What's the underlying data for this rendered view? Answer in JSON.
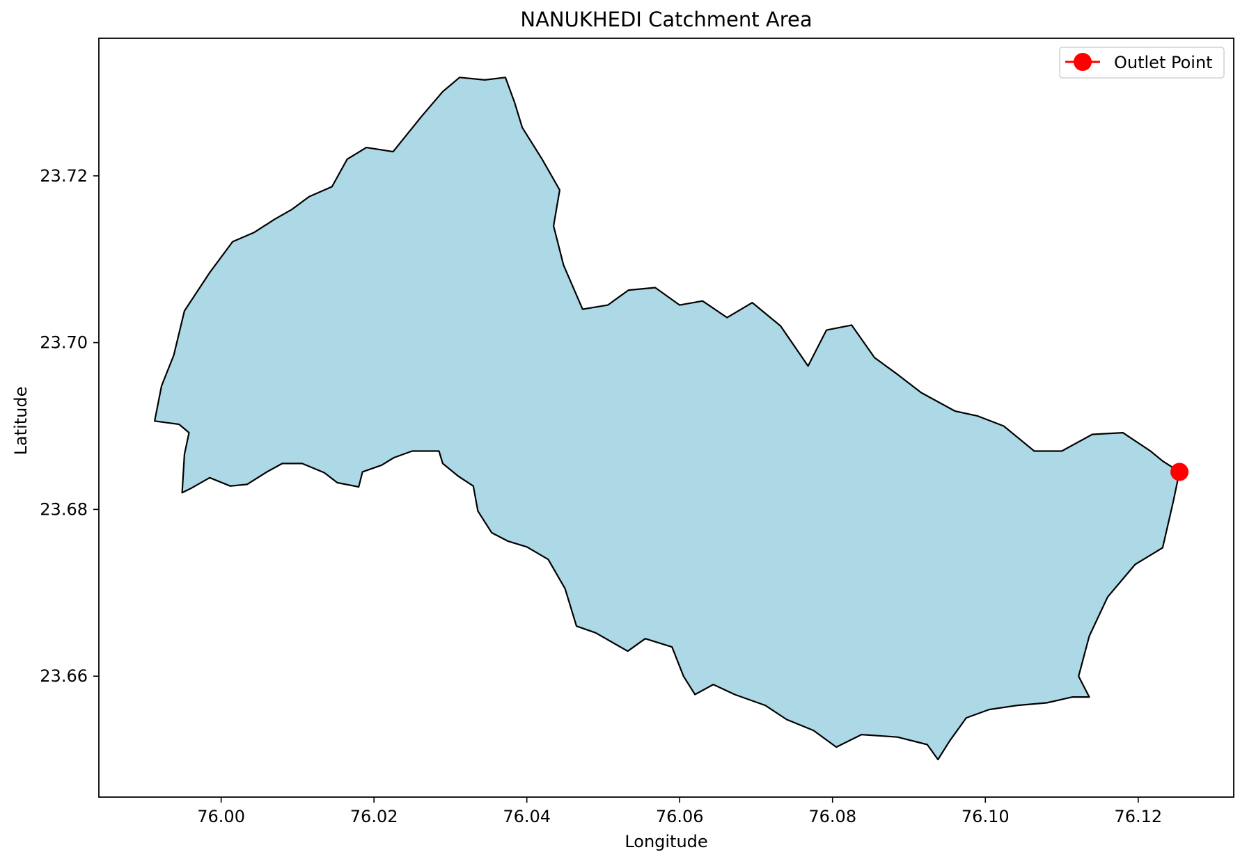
{
  "chart_data": {
    "type": "map",
    "title": "NANUKHEDI Catchment Area",
    "xlabel": "Longitude",
    "ylabel": "Latitude",
    "xlim": [
      75.984,
      76.1325
    ],
    "ylim": [
      23.6455,
      23.7365
    ],
    "x_ticks": [
      "76.00",
      "76.02",
      "76.04",
      "76.06",
      "76.08",
      "76.10",
      "76.12"
    ],
    "y_ticks": [
      "23.66",
      "23.68",
      "23.70",
      "23.72"
    ],
    "grid": false,
    "legend": {
      "position": "top-right",
      "entries": [
        "Outlet Point"
      ]
    },
    "catchment": {
      "fill": "#add8e6",
      "edge": "#000000",
      "boundary": [
        [
          75.9913,
          23.6906
        ],
        [
          75.9922,
          23.6948
        ],
        [
          75.9938,
          23.6985
        ],
        [
          75.9952,
          23.7038
        ],
        [
          75.9985,
          23.7084
        ],
        [
          76.0015,
          23.7121
        ],
        [
          76.0043,
          23.7132
        ],
        [
          76.007,
          23.7148
        ],
        [
          76.0093,
          23.716
        ],
        [
          76.0115,
          23.7175
        ],
        [
          76.0145,
          23.7187
        ],
        [
          76.0165,
          23.722
        ],
        [
          76.019,
          23.7234
        ],
        [
          76.0225,
          23.7229
        ],
        [
          76.0262,
          23.7271
        ],
        [
          76.029,
          23.7301
        ],
        [
          76.0312,
          23.7318
        ],
        [
          76.0345,
          23.7315
        ],
        [
          76.0372,
          23.7318
        ],
        [
          76.0384,
          23.7288
        ],
        [
          76.0394,
          23.7258
        ],
        [
          76.042,
          23.722
        ],
        [
          76.0443,
          23.7183
        ],
        [
          76.0435,
          23.714
        ],
        [
          76.0448,
          23.7093
        ],
        [
          76.0473,
          23.704
        ],
        [
          76.0506,
          23.7045
        ],
        [
          76.0533,
          23.7063
        ],
        [
          76.0568,
          23.7066
        ],
        [
          76.06,
          23.7045
        ],
        [
          76.063,
          23.705
        ],
        [
          76.0662,
          23.703
        ],
        [
          76.0695,
          23.7048
        ],
        [
          76.0732,
          23.702
        ],
        [
          76.0768,
          23.6972
        ],
        [
          76.0792,
          23.7015
        ],
        [
          76.0825,
          23.7021
        ],
        [
          76.0855,
          23.6982
        ],
        [
          76.0885,
          23.6962
        ],
        [
          76.0916,
          23.694
        ],
        [
          76.096,
          23.6918
        ],
        [
          76.099,
          23.6912
        ],
        [
          76.1024,
          23.69
        ],
        [
          76.1064,
          23.687
        ],
        [
          76.11,
          23.687
        ],
        [
          76.114,
          23.689
        ],
        [
          76.118,
          23.6892
        ],
        [
          76.1216,
          23.687
        ],
        [
          76.1232,
          23.6858
        ],
        [
          76.1254,
          23.6845
        ],
        [
          76.1246,
          23.681
        ],
        [
          76.1232,
          23.6754
        ],
        [
          76.1196,
          23.6734
        ],
        [
          76.116,
          23.6695
        ],
        [
          76.1136,
          23.6648
        ],
        [
          76.1122,
          23.66
        ],
        [
          76.1136,
          23.6575
        ],
        [
          76.1114,
          23.6575
        ],
        [
          76.108,
          23.6568
        ],
        [
          76.1042,
          23.6565
        ],
        [
          76.1005,
          23.656
        ],
        [
          76.0975,
          23.655
        ],
        [
          76.0953,
          23.6522
        ],
        [
          76.0938,
          23.65
        ],
        [
          76.0924,
          23.6518
        ],
        [
          76.0885,
          23.6527
        ],
        [
          76.0838,
          23.653
        ],
        [
          76.0805,
          23.6515
        ],
        [
          76.0775,
          23.6535
        ],
        [
          76.074,
          23.6548
        ],
        [
          76.0712,
          23.6565
        ],
        [
          76.0672,
          23.6578
        ],
        [
          76.0644,
          23.659
        ],
        [
          76.062,
          23.6578
        ],
        [
          76.0605,
          23.66
        ],
        [
          76.059,
          23.6635
        ],
        [
          76.0555,
          23.6645
        ],
        [
          76.0532,
          23.663
        ],
        [
          76.049,
          23.6652
        ],
        [
          76.0465,
          23.666
        ],
        [
          76.045,
          23.6705
        ],
        [
          76.0428,
          23.674
        ],
        [
          76.04,
          23.6755
        ],
        [
          76.0375,
          23.6762
        ],
        [
          76.0354,
          23.6772
        ],
        [
          76.0336,
          23.6798
        ],
        [
          76.033,
          23.6828
        ],
        [
          76.031,
          23.684
        ],
        [
          76.029,
          23.6855
        ],
        [
          76.0285,
          23.687
        ],
        [
          76.025,
          23.687
        ],
        [
          76.0226,
          23.6862
        ],
        [
          76.021,
          23.6853
        ],
        [
          76.0185,
          23.6845
        ],
        [
          76.018,
          23.6827
        ],
        [
          76.0152,
          23.6832
        ],
        [
          76.0135,
          23.6844
        ],
        [
          76.0106,
          23.6855
        ],
        [
          76.008,
          23.6855
        ],
        [
          76.006,
          23.6845
        ],
        [
          76.0034,
          23.683
        ],
        [
          76.0012,
          23.6828
        ],
        [
          75.9985,
          23.6838
        ],
        [
          75.996,
          23.6825
        ],
        [
          75.9949,
          23.682
        ],
        [
          75.9952,
          23.6866
        ],
        [
          75.9958,
          23.6892
        ],
        [
          75.9945,
          23.6902
        ],
        [
          75.9913,
          23.6906
        ]
      ]
    },
    "outlet": {
      "lon": 76.1254,
      "lat": 23.6845,
      "color": "#ff0000",
      "label": "Outlet Point"
    }
  }
}
